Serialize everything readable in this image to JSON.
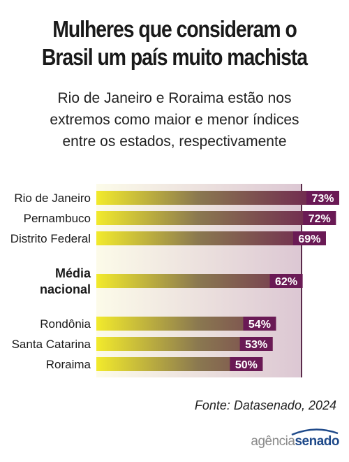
{
  "header": {
    "title_line1": "Mulheres que consideram o",
    "title_line2": "Brasil um país muito machista",
    "subtitle_line1": "Rio de Janeiro e Roraima estão nos",
    "subtitle_line2": "extremos como maior e menor índices",
    "subtitle_line3": "entre os estados, respectivamente"
  },
  "chart_data": {
    "type": "bar",
    "orientation": "horizontal",
    "categories": [
      "Rio de Janeiro",
      "Pernambuco",
      "Distrito Federal",
      "Média nacional",
      "Rondônia",
      "Santa Catarina",
      "Roraima"
    ],
    "values": [
      73,
      72,
      69,
      62,
      54,
      53,
      50
    ],
    "value_labels": [
      "73%",
      "72%",
      "69%",
      "62%",
      "54%",
      "53%",
      "50%"
    ],
    "highlighted_category": "Média nacional",
    "unit": "%",
    "xlim": [
      0,
      73
    ],
    "colors": {
      "bar_start": "#f2ea2c",
      "bar_mid": "#8a7850",
      "bar_end": "#6a1750",
      "label_bg": "#6a1a55",
      "label_text": "#ffffff",
      "panel_start": "#fcfbe9",
      "panel_end": "#dcc7d3"
    },
    "grid": false,
    "legend": "none"
  },
  "footer": {
    "source": "Fonte: Datasenado, 2024",
    "logo_part1": "agência",
    "logo_part2": "senado",
    "logo_color": "#1f4a8a"
  }
}
